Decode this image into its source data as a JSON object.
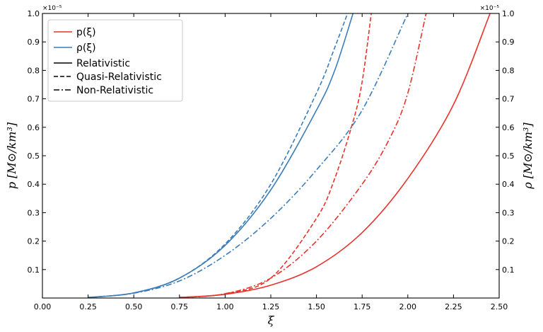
{
  "chart_data": {
    "type": "line",
    "title": "",
    "xlabel": "ξ",
    "ylabel_left": "p [M⊙/km³]",
    "ylabel_right": "ρ [M⊙/km³]",
    "multiplier_left": "×10⁻⁵",
    "multiplier_right": "×10⁻⁵",
    "xlim": [
      0.0,
      2.5
    ],
    "ylim": [
      0.0,
      1.0
    ],
    "x_ticks": [
      "0.00",
      "0.25",
      "0.50",
      "0.75",
      "1.00",
      "1.25",
      "1.50",
      "1.75",
      "2.00",
      "2.25",
      "2.50"
    ],
    "y_ticks": [
      "0.1",
      "0.2",
      "0.3",
      "0.4",
      "0.5",
      "0.6",
      "0.7",
      "0.8",
      "0.9",
      "1.0"
    ],
    "y_ticks_right": [
      "0.1",
      "0.2",
      "0.3",
      "0.4",
      "0.5",
      "0.6",
      "0.7",
      "0.8",
      "0.9",
      "1.0"
    ],
    "grid": false,
    "legend_position": "top-left",
    "legend": [
      {
        "label": "p(ξ)",
        "kind": "color",
        "color": "#e8322b"
      },
      {
        "label": "ρ(ξ)",
        "kind": "color",
        "color": "#3b7db8"
      },
      {
        "label": "Relativistic",
        "kind": "style",
        "dash": "solid"
      },
      {
        "label": "Quasi-Relativistic",
        "kind": "style",
        "dash": "dashed"
      },
      {
        "label": "Non-Relativistic",
        "kind": "style",
        "dash": "dashdot"
      }
    ],
    "series": [
      {
        "quantity": "rho",
        "regime": "Relativistic",
        "color": "#3b7db8",
        "dash": "solid",
        "x": [
          0.25,
          0.5,
          0.75,
          1.0,
          1.25,
          1.5,
          1.6,
          1.7
        ],
        "y": [
          0.002,
          0.018,
          0.07,
          0.185,
          0.38,
          0.66,
          0.8,
          1.0
        ]
      },
      {
        "quantity": "rho",
        "regime": "Quasi-Relativistic",
        "color": "#3b7db8",
        "dash": "dashed",
        "x": [
          0.25,
          0.5,
          0.75,
          1.0,
          1.25,
          1.5,
          1.6,
          1.67
        ],
        "y": [
          0.002,
          0.018,
          0.07,
          0.19,
          0.4,
          0.72,
          0.88,
          1.0
        ]
      },
      {
        "quantity": "rho",
        "regime": "Non-Relativistic",
        "color": "#3b7db8",
        "dash": "dashdot",
        "x": [
          0.25,
          0.5,
          0.75,
          1.0,
          1.25,
          1.5,
          1.75,
          2.0
        ],
        "y": [
          0.002,
          0.017,
          0.06,
          0.15,
          0.28,
          0.45,
          0.66,
          1.0
        ]
      },
      {
        "quantity": "p",
        "regime": "Relativistic",
        "color": "#e8322b",
        "dash": "solid",
        "x": [
          0.75,
          1.0,
          1.25,
          1.5,
          1.75,
          2.0,
          2.25,
          2.45
        ],
        "y": [
          0.002,
          0.013,
          0.045,
          0.11,
          0.23,
          0.42,
          0.68,
          1.0
        ]
      },
      {
        "quantity": "p",
        "regime": "Quasi-Relativistic",
        "color": "#e8322b",
        "dash": "dashed",
        "x": [
          0.75,
          1.0,
          1.25,
          1.5,
          1.6,
          1.7,
          1.75,
          1.8
        ],
        "y": [
          0.002,
          0.015,
          0.07,
          0.28,
          0.42,
          0.62,
          0.76,
          1.0
        ]
      },
      {
        "quantity": "p",
        "regime": "Non-Relativistic",
        "color": "#e8322b",
        "dash": "dashdot",
        "x": [
          0.75,
          1.0,
          1.25,
          1.5,
          1.75,
          1.9,
          2.0,
          2.1
        ],
        "y": [
          0.002,
          0.015,
          0.07,
          0.2,
          0.4,
          0.56,
          0.72,
          1.0
        ]
      }
    ]
  }
}
